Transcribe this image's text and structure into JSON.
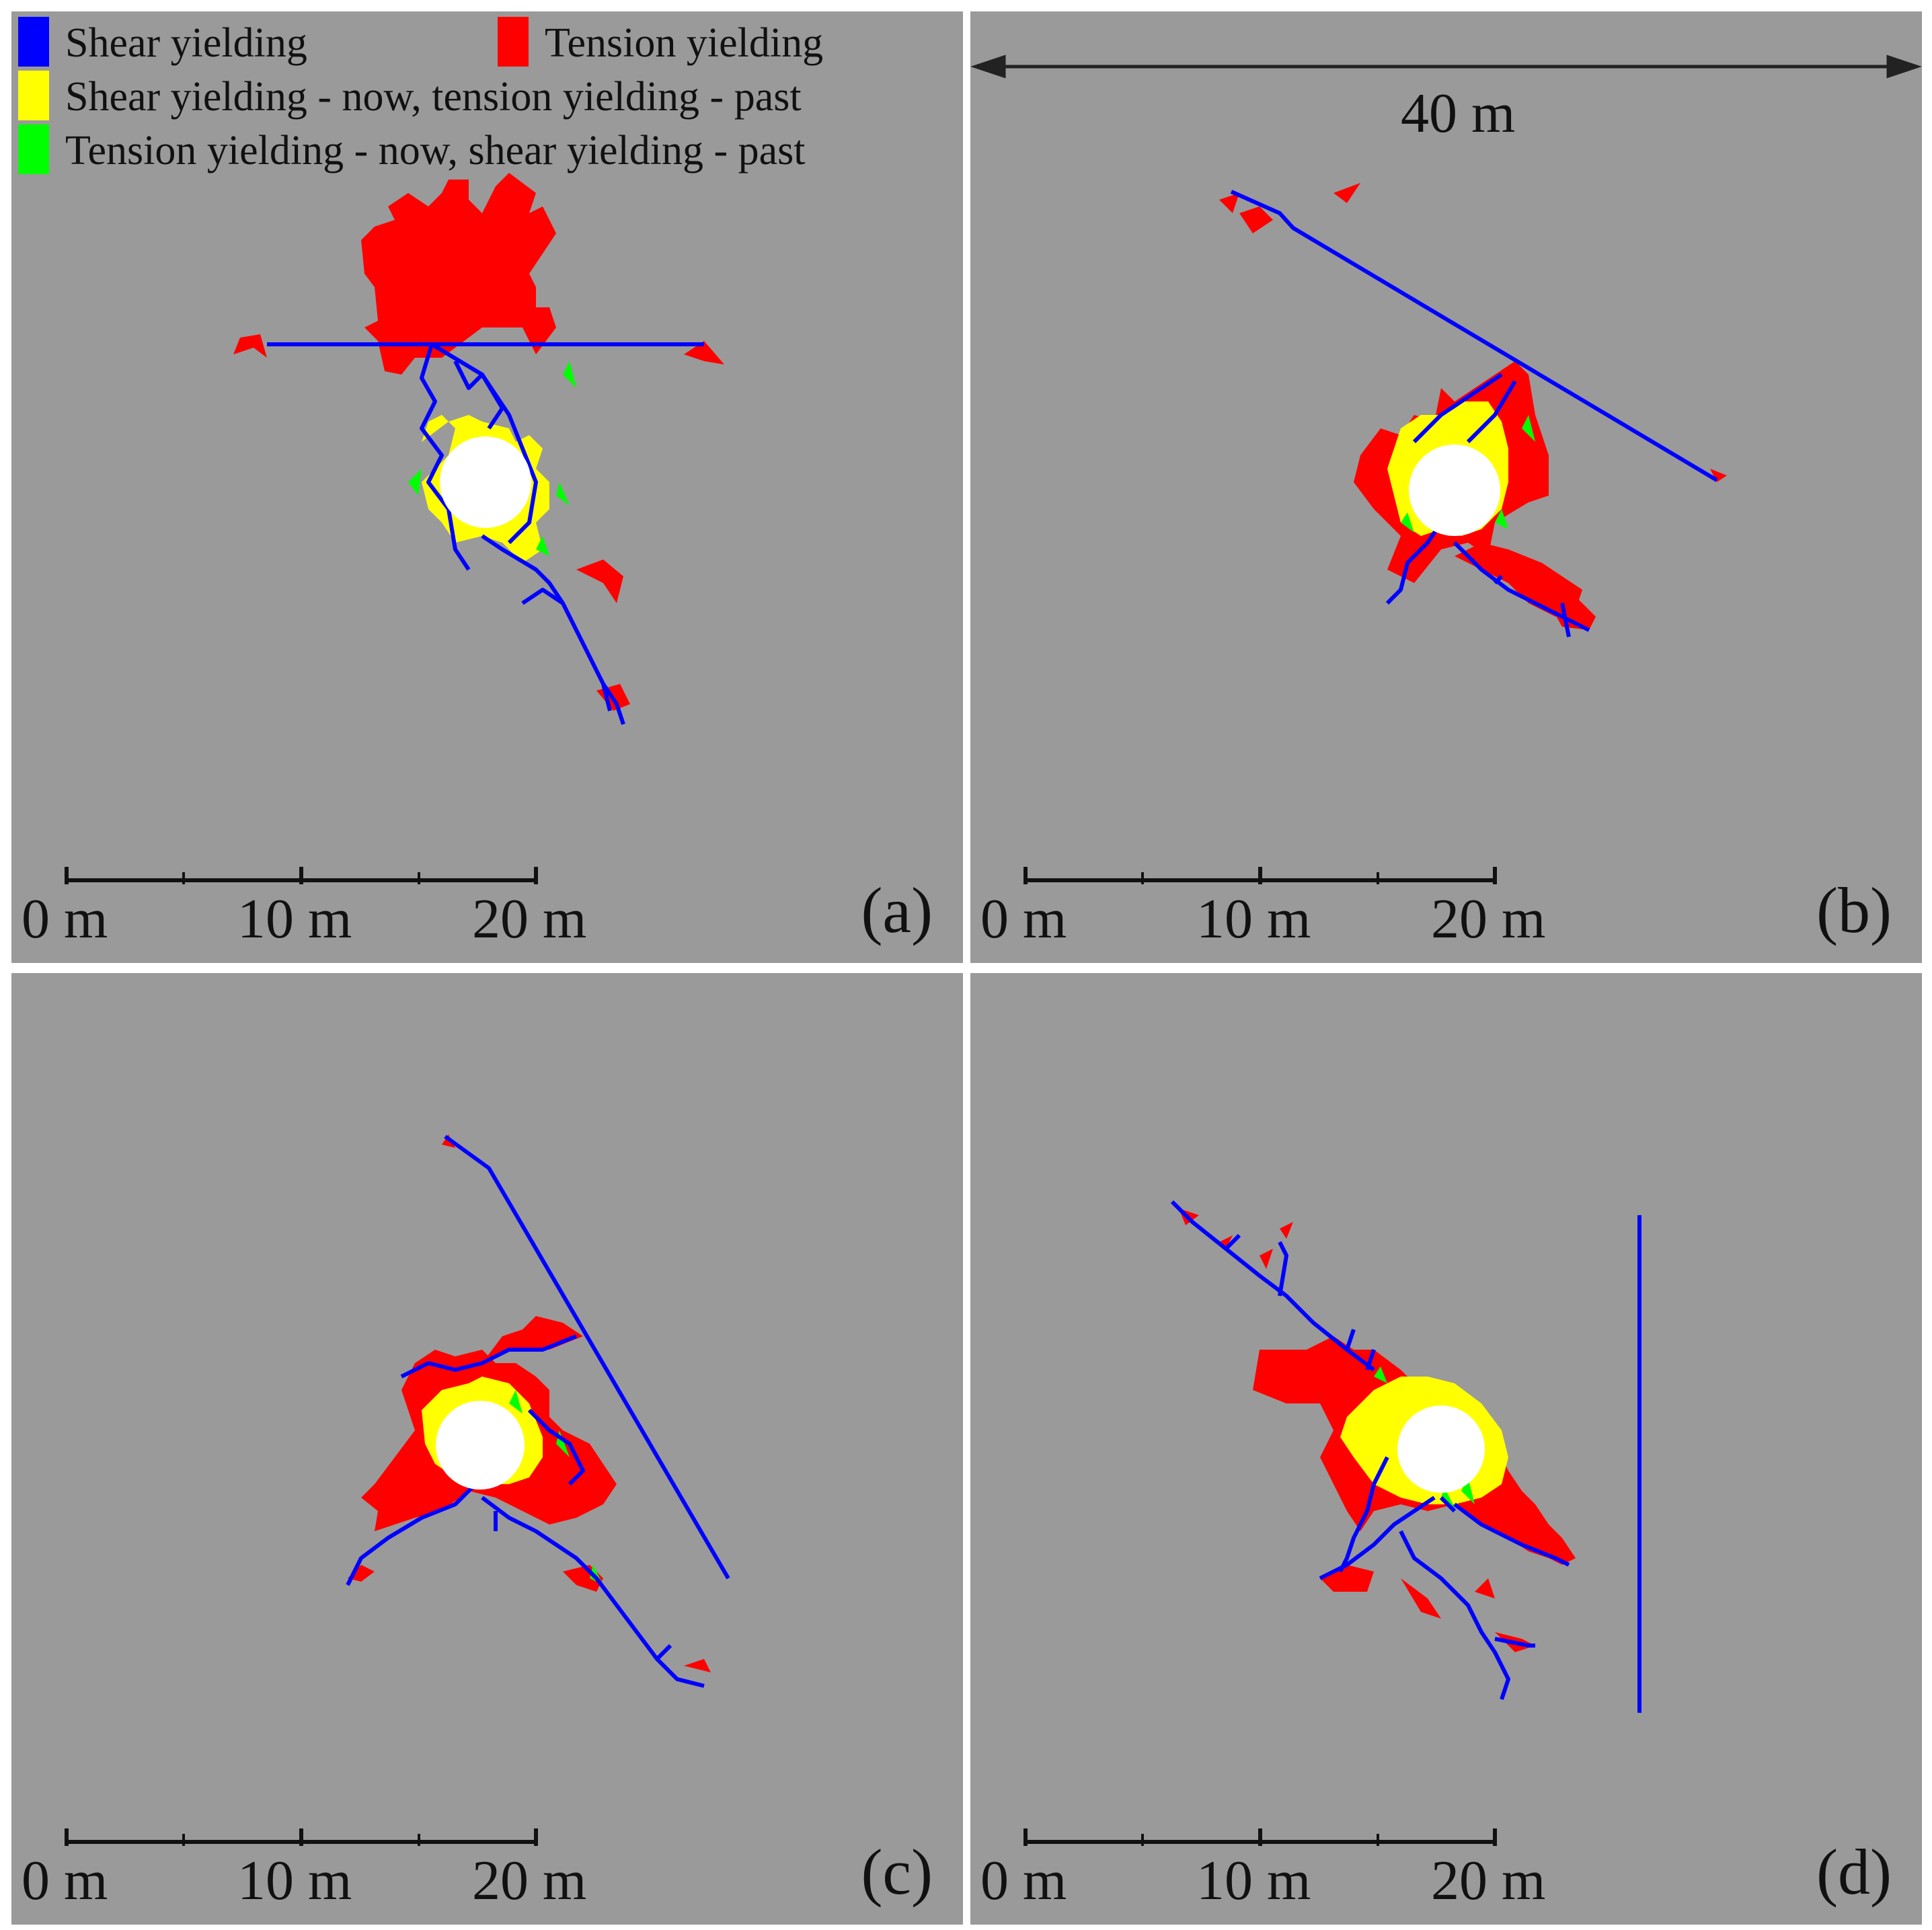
{
  "legend": {
    "items": [
      {
        "label": "Shear yielding",
        "color": "#0000ff"
      },
      {
        "label": "Tension yielding",
        "color": "#ff0000"
      },
      {
        "label": "Shear yielding - now, tension yielding - past",
        "color": "#ffff00"
      },
      {
        "label": "Tension yielding - now, shear yielding - past",
        "color": "#00ff00"
      }
    ]
  },
  "dimension": {
    "label": "40 m"
  },
  "scale_bar": {
    "ticks": [
      "0 m",
      "10 m",
      "20 m"
    ]
  },
  "panels": [
    {
      "id": "a",
      "label": "(a)"
    },
    {
      "id": "b",
      "label": "(b)"
    },
    {
      "id": "c",
      "label": "(c)"
    },
    {
      "id": "d",
      "label": "(d)"
    }
  ],
  "colors": {
    "background": "#9a9a9a",
    "shear": "#0000ff",
    "tension": "#ff0000",
    "shear_now_tension_past": "#ffff00",
    "tension_now_shear_past": "#00ff00",
    "opening": "#ffffff"
  }
}
